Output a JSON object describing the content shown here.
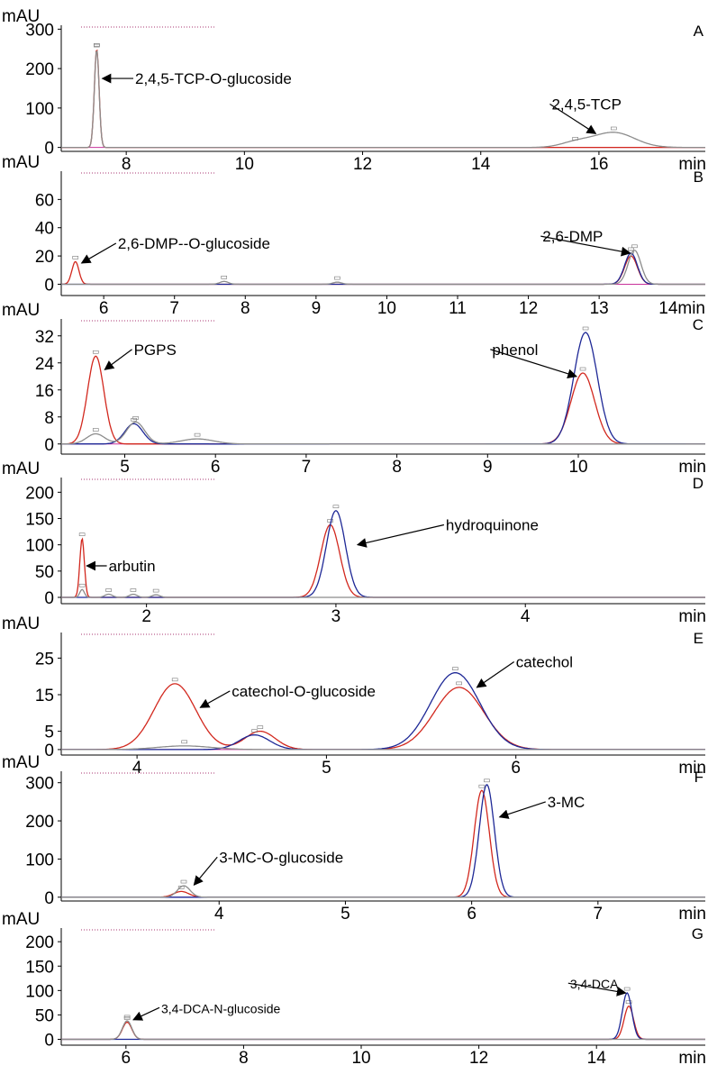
{
  "figure": {
    "colors": {
      "red": "#d2281e",
      "blue": "#1e2896",
      "gray": "#8c8c8c",
      "magenta": "#c8329b"
    }
  },
  "chart_data": [
    {
      "letter": "A",
      "type": "line",
      "ylabel": "mAU",
      "xunit": "min",
      "xlim": [
        6.9,
        17.8
      ],
      "ylim": [
        -10,
        310
      ],
      "xticks": [
        8,
        10,
        12,
        14,
        16
      ],
      "yticks": [
        0,
        100,
        200,
        300
      ],
      "series": [
        {
          "color": "red",
          "peaks": [
            {
              "x": 7.5,
              "y": 250,
              "w": 0.04
            }
          ]
        },
        {
          "color": "gray",
          "peaks": [
            {
              "x": 7.5,
              "y": 248,
              "w": 0.04
            },
            {
              "x": 15.6,
              "y": 12,
              "w": 0.25
            },
            {
              "x": 16.25,
              "y": 38,
              "w": 0.35
            }
          ]
        }
      ],
      "annotations": [
        {
          "text": "2,4,5-TCP-O-glucoside",
          "x": 7.55,
          "y": 175,
          "tx": 8.15,
          "ty": 175
        },
        {
          "text": "2,4,5-TCP",
          "x": 15.9,
          "y": 35,
          "tx": 15.2,
          "ty": 110
        }
      ]
    },
    {
      "letter": "B",
      "type": "line",
      "ylabel": "mAU",
      "xunit": "min",
      "xlim": [
        5.4,
        14.5
      ],
      "ylim": [
        -8,
        80
      ],
      "xticks": [
        6,
        7,
        8,
        9,
        10,
        11,
        12,
        13
      ],
      "yticks": [
        0,
        20,
        40,
        60
      ],
      "last_tick": "14min",
      "series": [
        {
          "color": "red",
          "peaks": [
            {
              "x": 5.6,
              "y": 16,
              "w": 0.05
            },
            {
              "x": 13.45,
              "y": 20,
              "w": 0.09
            }
          ]
        },
        {
          "color": "blue",
          "peaks": [
            {
              "x": 13.45,
              "y": 22,
              "w": 0.09
            }
          ]
        },
        {
          "color": "gray",
          "peaks": [
            {
              "x": 7.7,
              "y": 2,
              "w": 0.06
            },
            {
              "x": 9.3,
              "y": 1.5,
              "w": 0.06
            },
            {
              "x": 13.5,
              "y": 24,
              "w": 0.09
            }
          ]
        }
      ],
      "annotations": [
        {
          "text": "2,6-DMP--O-glucoside",
          "x": 5.65,
          "y": 15,
          "tx": 6.2,
          "ty": 29
        },
        {
          "text": "2,6-DMP",
          "x": 13.4,
          "y": 22,
          "tx": 12.2,
          "ty": 34
        }
      ]
    },
    {
      "letter": "C",
      "type": "line",
      "ylabel": "mAU",
      "xunit": "min",
      "xlim": [
        4.3,
        11.4
      ],
      "ylim": [
        -3,
        37
      ],
      "xticks": [
        5,
        6,
        7,
        8,
        9,
        10
      ],
      "yticks": [
        0,
        8,
        16,
        24,
        32
      ],
      "series": [
        {
          "color": "red",
          "peaks": [
            {
              "x": 4.68,
              "y": 26,
              "w": 0.09
            },
            {
              "x": 10.05,
              "y": 21,
              "w": 0.13
            }
          ]
        },
        {
          "color": "blue",
          "peaks": [
            {
              "x": 5.1,
              "y": 6,
              "w": 0.1
            },
            {
              "x": 10.08,
              "y": 33,
              "w": 0.13
            }
          ]
        },
        {
          "color": "gray",
          "peaks": [
            {
              "x": 4.68,
              "y": 3,
              "w": 0.1
            },
            {
              "x": 5.12,
              "y": 6.5,
              "w": 0.1
            },
            {
              "x": 5.8,
              "y": 1.5,
              "w": 0.18
            }
          ]
        }
      ],
      "annotations": [
        {
          "text": "PGPS",
          "x": 4.75,
          "y": 22,
          "tx": 5.1,
          "ty": 28
        },
        {
          "text": "phenol",
          "x": 9.95,
          "y": 20,
          "tx": 9.05,
          "ty": 28
        }
      ]
    },
    {
      "letter": "D",
      "type": "line",
      "ylabel": "mAU",
      "xunit": "min",
      "xlim": [
        1.55,
        4.95
      ],
      "ylim": [
        -12,
        228
      ],
      "xticks": [
        2,
        3,
        4
      ],
      "yticks": [
        0,
        50,
        100,
        150,
        200
      ],
      "series": [
        {
          "color": "red",
          "peaks": [
            {
              "x": 1.66,
              "y": 112,
              "w": 0.012
            },
            {
              "x": 2.97,
              "y": 138,
              "w": 0.05
            }
          ]
        },
        {
          "color": "blue",
          "peaks": [
            {
              "x": 3.0,
              "y": 165,
              "w": 0.05
            }
          ]
        },
        {
          "color": "gray",
          "peaks": [
            {
              "x": 1.66,
              "y": 15,
              "w": 0.012
            },
            {
              "x": 1.8,
              "y": 6,
              "w": 0.02
            },
            {
              "x": 1.93,
              "y": 6,
              "w": 0.02
            },
            {
              "x": 2.05,
              "y": 5,
              "w": 0.02
            }
          ]
        }
      ],
      "annotations": [
        {
          "text": "arbutin",
          "x": 1.67,
          "y": 60,
          "tx": 1.8,
          "ty": 60
        },
        {
          "text": "hydroquinone",
          "x": 3.1,
          "y": 100,
          "tx": 3.58,
          "ty": 138
        }
      ]
    },
    {
      "letter": "E",
      "type": "line",
      "ylabel": "mAU",
      "xunit": "min",
      "xlim": [
        3.6,
        7.0
      ],
      "ylim": [
        -1.5,
        32
      ],
      "xticks": [
        4,
        5,
        6
      ],
      "yticks": [
        0,
        5,
        15,
        25
      ],
      "series": [
        {
          "color": "red",
          "peaks": [
            {
              "x": 4.2,
              "y": 18,
              "w": 0.11
            },
            {
              "x": 4.65,
              "y": 5,
              "w": 0.08
            },
            {
              "x": 5.7,
              "y": 17,
              "w": 0.13
            }
          ]
        },
        {
          "color": "blue",
          "peaks": [
            {
              "x": 4.62,
              "y": 4,
              "w": 0.08
            },
            {
              "x": 5.68,
              "y": 21,
              "w": 0.13
            }
          ]
        },
        {
          "color": "gray",
          "peaks": [
            {
              "x": 4.25,
              "y": 1,
              "w": 0.14
            }
          ]
        }
      ],
      "annotations": [
        {
          "text": "catechol-O-glucoside",
          "x": 4.32,
          "y": 11.5,
          "tx": 4.5,
          "ty": 16
        },
        {
          "text": "catechol",
          "x": 5.78,
          "y": 17,
          "tx": 6.0,
          "ty": 24
        }
      ]
    },
    {
      "letter": "F",
      "type": "line",
      "ylabel": "mAU",
      "xunit": "min",
      "xlim": [
        2.75,
        7.85
      ],
      "ylim": [
        -10,
        330
      ],
      "xticks": [
        4,
        5,
        6,
        7
      ],
      "yticks": [
        0,
        100,
        200,
        300
      ],
      "series": [
        {
          "color": "red",
          "peaks": [
            {
              "x": 3.7,
              "y": 15,
              "w": 0.06
            },
            {
              "x": 6.08,
              "y": 280,
              "w": 0.06
            }
          ]
        },
        {
          "color": "blue",
          "peaks": [
            {
              "x": 6.12,
              "y": 295,
              "w": 0.06
            }
          ]
        },
        {
          "color": "gray",
          "peaks": [
            {
              "x": 3.72,
              "y": 30,
              "w": 0.05
            }
          ]
        }
      ],
      "annotations": [
        {
          "text": "3-MC-O-glucoside",
          "x": 3.78,
          "y": 32,
          "tx": 4.0,
          "ty": 105
        },
        {
          "text": "3-MC",
          "x": 6.2,
          "y": 210,
          "tx": 6.6,
          "ty": 250
        }
      ]
    },
    {
      "letter": "G",
      "type": "line",
      "ylabel": "mAU",
      "xunit": "min",
      "xlim": [
        4.9,
        15.85
      ],
      "ylim": [
        -12,
        228
      ],
      "xticks": [
        6,
        8,
        10,
        12,
        14
      ],
      "yticks": [
        0,
        50,
        100,
        150,
        200
      ],
      "series": [
        {
          "color": "red",
          "peaks": [
            {
              "x": 6.02,
              "y": 35,
              "w": 0.08
            },
            {
              "x": 14.55,
              "y": 68,
              "w": 0.08
            }
          ]
        },
        {
          "color": "blue",
          "peaks": [
            {
              "x": 14.52,
              "y": 95,
              "w": 0.08
            }
          ]
        },
        {
          "color": "gray",
          "peaks": [
            {
              "x": 6.02,
              "y": 38,
              "w": 0.08
            }
          ]
        }
      ],
      "annotations": [
        {
          "text": "3,4-DCA-N-glucoside",
          "x": 6.08,
          "y": 40,
          "tx": 6.6,
          "ty": 65,
          "small": true
        },
        {
          "text": "3,4-DCA",
          "x": 14.45,
          "y": 95,
          "tx": 13.55,
          "ty": 115,
          "small": true
        }
      ]
    }
  ]
}
